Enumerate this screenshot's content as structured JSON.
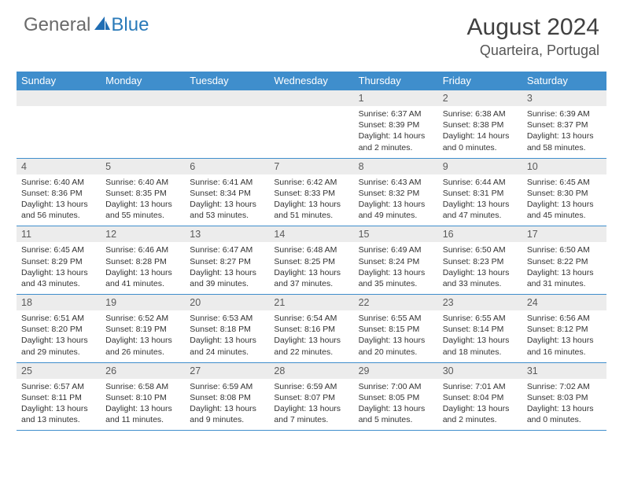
{
  "brand": {
    "part1": "General",
    "part2": "Blue"
  },
  "title": "August 2024",
  "location": "Quarteira, Portugal",
  "day_header_bg": "#3f8ecc",
  "day_header_fg": "#ffffff",
  "daynum_bg": "#ececec",
  "divider_color": "#3f8ecc",
  "days_of_week": [
    "Sunday",
    "Monday",
    "Tuesday",
    "Wednesday",
    "Thursday",
    "Friday",
    "Saturday"
  ],
  "weeks": [
    [
      {
        "n": "",
        "sr": "",
        "ss": "",
        "dl": ""
      },
      {
        "n": "",
        "sr": "",
        "ss": "",
        "dl": ""
      },
      {
        "n": "",
        "sr": "",
        "ss": "",
        "dl": ""
      },
      {
        "n": "",
        "sr": "",
        "ss": "",
        "dl": ""
      },
      {
        "n": "1",
        "sr": "Sunrise: 6:37 AM",
        "ss": "Sunset: 8:39 PM",
        "dl": "Daylight: 14 hours and 2 minutes."
      },
      {
        "n": "2",
        "sr": "Sunrise: 6:38 AM",
        "ss": "Sunset: 8:38 PM",
        "dl": "Daylight: 14 hours and 0 minutes."
      },
      {
        "n": "3",
        "sr": "Sunrise: 6:39 AM",
        "ss": "Sunset: 8:37 PM",
        "dl": "Daylight: 13 hours and 58 minutes."
      }
    ],
    [
      {
        "n": "4",
        "sr": "Sunrise: 6:40 AM",
        "ss": "Sunset: 8:36 PM",
        "dl": "Daylight: 13 hours and 56 minutes."
      },
      {
        "n": "5",
        "sr": "Sunrise: 6:40 AM",
        "ss": "Sunset: 8:35 PM",
        "dl": "Daylight: 13 hours and 55 minutes."
      },
      {
        "n": "6",
        "sr": "Sunrise: 6:41 AM",
        "ss": "Sunset: 8:34 PM",
        "dl": "Daylight: 13 hours and 53 minutes."
      },
      {
        "n": "7",
        "sr": "Sunrise: 6:42 AM",
        "ss": "Sunset: 8:33 PM",
        "dl": "Daylight: 13 hours and 51 minutes."
      },
      {
        "n": "8",
        "sr": "Sunrise: 6:43 AM",
        "ss": "Sunset: 8:32 PM",
        "dl": "Daylight: 13 hours and 49 minutes."
      },
      {
        "n": "9",
        "sr": "Sunrise: 6:44 AM",
        "ss": "Sunset: 8:31 PM",
        "dl": "Daylight: 13 hours and 47 minutes."
      },
      {
        "n": "10",
        "sr": "Sunrise: 6:45 AM",
        "ss": "Sunset: 8:30 PM",
        "dl": "Daylight: 13 hours and 45 minutes."
      }
    ],
    [
      {
        "n": "11",
        "sr": "Sunrise: 6:45 AM",
        "ss": "Sunset: 8:29 PM",
        "dl": "Daylight: 13 hours and 43 minutes."
      },
      {
        "n": "12",
        "sr": "Sunrise: 6:46 AM",
        "ss": "Sunset: 8:28 PM",
        "dl": "Daylight: 13 hours and 41 minutes."
      },
      {
        "n": "13",
        "sr": "Sunrise: 6:47 AM",
        "ss": "Sunset: 8:27 PM",
        "dl": "Daylight: 13 hours and 39 minutes."
      },
      {
        "n": "14",
        "sr": "Sunrise: 6:48 AM",
        "ss": "Sunset: 8:25 PM",
        "dl": "Daylight: 13 hours and 37 minutes."
      },
      {
        "n": "15",
        "sr": "Sunrise: 6:49 AM",
        "ss": "Sunset: 8:24 PM",
        "dl": "Daylight: 13 hours and 35 minutes."
      },
      {
        "n": "16",
        "sr": "Sunrise: 6:50 AM",
        "ss": "Sunset: 8:23 PM",
        "dl": "Daylight: 13 hours and 33 minutes."
      },
      {
        "n": "17",
        "sr": "Sunrise: 6:50 AM",
        "ss": "Sunset: 8:22 PM",
        "dl": "Daylight: 13 hours and 31 minutes."
      }
    ],
    [
      {
        "n": "18",
        "sr": "Sunrise: 6:51 AM",
        "ss": "Sunset: 8:20 PM",
        "dl": "Daylight: 13 hours and 29 minutes."
      },
      {
        "n": "19",
        "sr": "Sunrise: 6:52 AM",
        "ss": "Sunset: 8:19 PM",
        "dl": "Daylight: 13 hours and 26 minutes."
      },
      {
        "n": "20",
        "sr": "Sunrise: 6:53 AM",
        "ss": "Sunset: 8:18 PM",
        "dl": "Daylight: 13 hours and 24 minutes."
      },
      {
        "n": "21",
        "sr": "Sunrise: 6:54 AM",
        "ss": "Sunset: 8:16 PM",
        "dl": "Daylight: 13 hours and 22 minutes."
      },
      {
        "n": "22",
        "sr": "Sunrise: 6:55 AM",
        "ss": "Sunset: 8:15 PM",
        "dl": "Daylight: 13 hours and 20 minutes."
      },
      {
        "n": "23",
        "sr": "Sunrise: 6:55 AM",
        "ss": "Sunset: 8:14 PM",
        "dl": "Daylight: 13 hours and 18 minutes."
      },
      {
        "n": "24",
        "sr": "Sunrise: 6:56 AM",
        "ss": "Sunset: 8:12 PM",
        "dl": "Daylight: 13 hours and 16 minutes."
      }
    ],
    [
      {
        "n": "25",
        "sr": "Sunrise: 6:57 AM",
        "ss": "Sunset: 8:11 PM",
        "dl": "Daylight: 13 hours and 13 minutes."
      },
      {
        "n": "26",
        "sr": "Sunrise: 6:58 AM",
        "ss": "Sunset: 8:10 PM",
        "dl": "Daylight: 13 hours and 11 minutes."
      },
      {
        "n": "27",
        "sr": "Sunrise: 6:59 AM",
        "ss": "Sunset: 8:08 PM",
        "dl": "Daylight: 13 hours and 9 minutes."
      },
      {
        "n": "28",
        "sr": "Sunrise: 6:59 AM",
        "ss": "Sunset: 8:07 PM",
        "dl": "Daylight: 13 hours and 7 minutes."
      },
      {
        "n": "29",
        "sr": "Sunrise: 7:00 AM",
        "ss": "Sunset: 8:05 PM",
        "dl": "Daylight: 13 hours and 5 minutes."
      },
      {
        "n": "30",
        "sr": "Sunrise: 7:01 AM",
        "ss": "Sunset: 8:04 PM",
        "dl": "Daylight: 13 hours and 2 minutes."
      },
      {
        "n": "31",
        "sr": "Sunrise: 7:02 AM",
        "ss": "Sunset: 8:03 PM",
        "dl": "Daylight: 13 hours and 0 minutes."
      }
    ]
  ]
}
